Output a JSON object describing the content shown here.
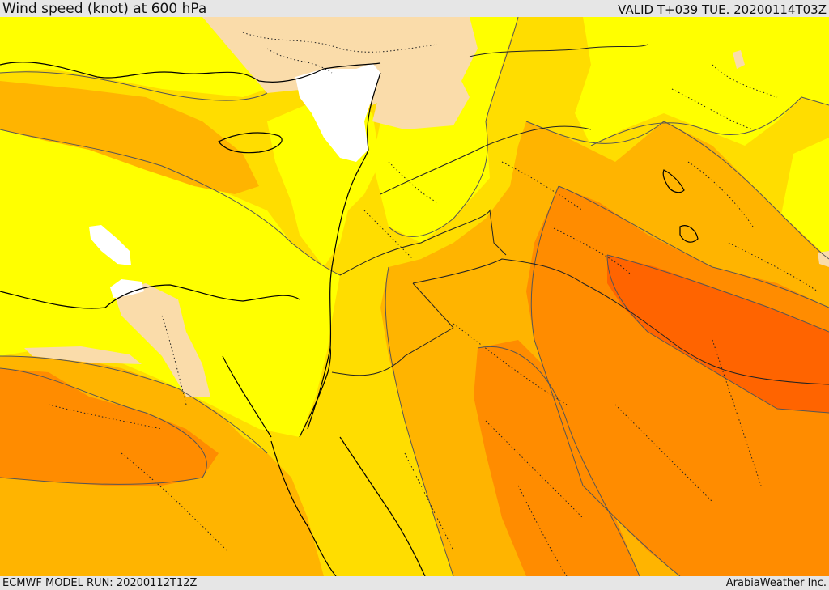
{
  "header": {
    "title": "Wind speed (knot) at 600 hPa",
    "valid_time": "VALID T+039 TUE. 20200114T03Z"
  },
  "footer": {
    "model_run": "ECMWF MODEL RUN: 20200112T12Z",
    "credit": "ArabiaWeather Inc."
  },
  "map": {
    "fill_colors": {
      "calm_white": "#ffffff",
      "very_light_tan": "#fadcaa",
      "light_yellow": "#ffff00",
      "gold": "#ffdd00",
      "amber": "#ffb400",
      "orange": "#ff8c00",
      "deep_orange": "#ff6400"
    },
    "line_colors": {
      "coastline_border": "#000000",
      "contour": "#555555",
      "internal_boundary": "#222222"
    }
  }
}
